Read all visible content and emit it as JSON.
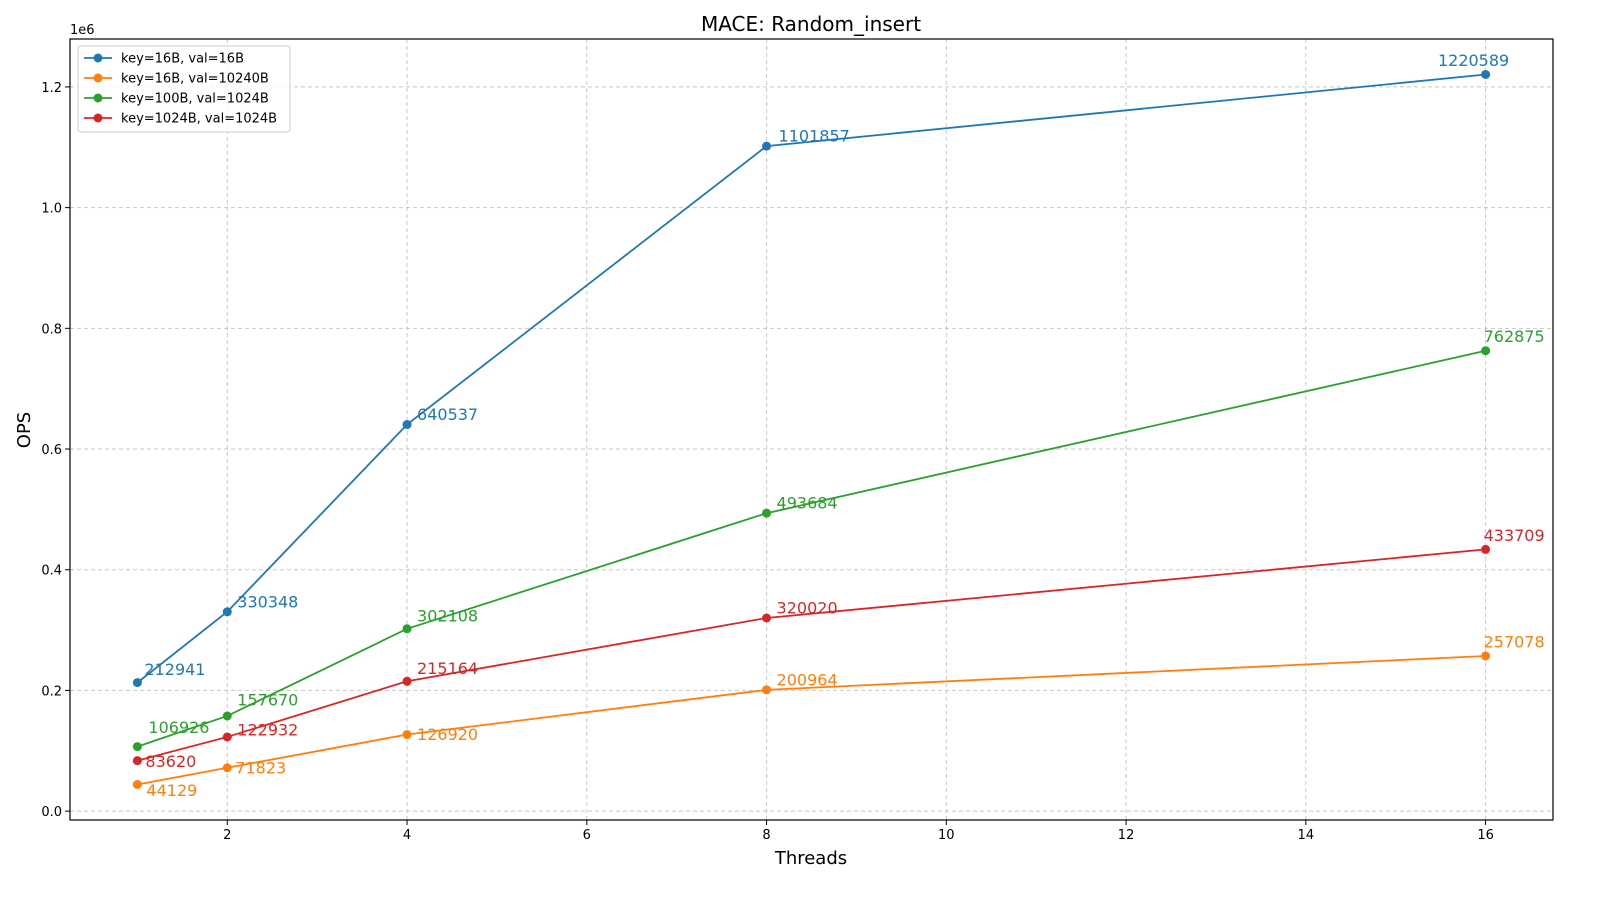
{
  "chart_data": {
    "type": "line",
    "title": "MACE: Random_insert",
    "xlabel": "Threads",
    "ylabel": "OPS",
    "y_offset_label": "1e6",
    "xlim": [
      0.25,
      16.75
    ],
    "ylim": [
      -14700,
      1279400
    ],
    "xticks": [
      2,
      4,
      6,
      8,
      10,
      12,
      14,
      16
    ],
    "xtick_labels": [
      "2",
      "4",
      "6",
      "8",
      "10",
      "12",
      "14",
      "16"
    ],
    "yticks": [
      0,
      200000,
      400000,
      600000,
      800000,
      1000000,
      1200000
    ],
    "ytick_labels": [
      "0.0",
      "0.2",
      "0.4",
      "0.6",
      "0.8",
      "1.0",
      "1.2"
    ],
    "grid": true,
    "legend_position": "top-left",
    "x": [
      1,
      2,
      4,
      8,
      16
    ],
    "series": [
      {
        "name": "key=16B, val=16B",
        "color": "#1f77b4",
        "values": [
          212941,
          330348,
          640537,
          1101857,
          1220589
        ],
        "labels": [
          "212941",
          "330348",
          "640537",
          "1101857",
          "1220589"
        ]
      },
      {
        "name": "key=16B, val=10240B",
        "color": "#ff7f0e",
        "values": [
          44129,
          71823,
          126920,
          200964,
          257078
        ],
        "labels": [
          "44129",
          "71823",
          "126920",
          "200964",
          "257078"
        ]
      },
      {
        "name": "key=100B, val=1024B",
        "color": "#2ca02c",
        "values": [
          106926,
          157670,
          302108,
          493684,
          762875
        ],
        "labels": [
          "106926",
          "157670",
          "302108",
          "493684",
          "762875"
        ]
      },
      {
        "name": "key=1024B, val=1024B",
        "color": "#d62728",
        "values": [
          83620,
          122932,
          215164,
          320020,
          433709
        ],
        "labels": [
          "83620",
          "122932",
          "215164",
          "320020",
          "433709"
        ]
      }
    ]
  }
}
